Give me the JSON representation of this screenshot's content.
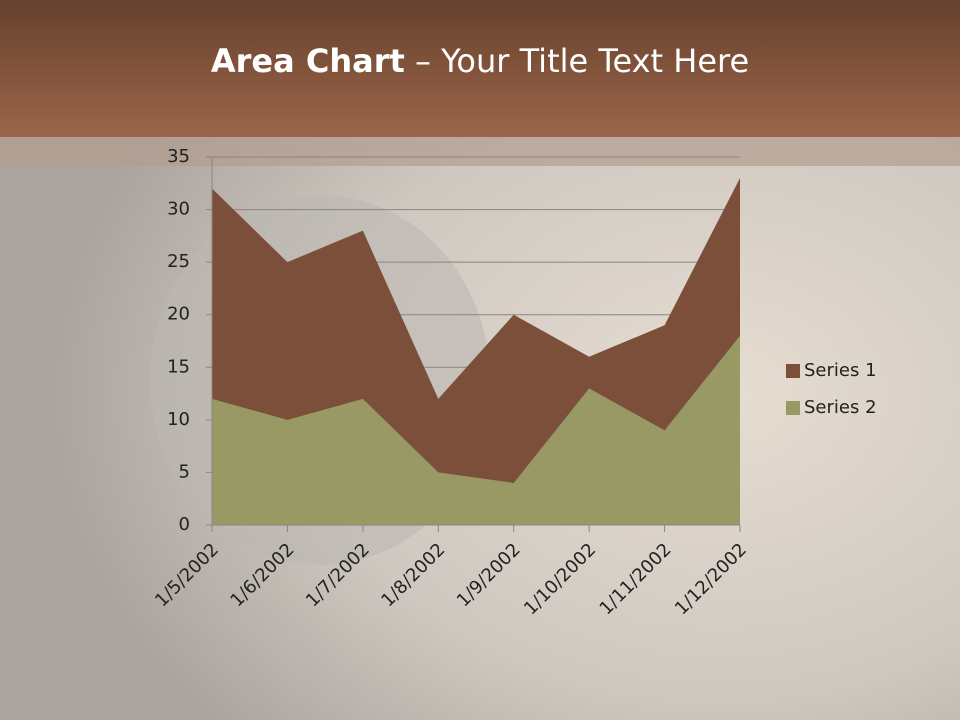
{
  "chart_data": {
    "type": "area",
    "title_bold": "Area Chart",
    "title_rest": " – Your Title Text Here",
    "categories": [
      "1/5/2002",
      "1/6/2002",
      "1/7/2002",
      "1/8/2002",
      "1/9/2002",
      "1/10/2002",
      "1/11/2002",
      "1/12/2002"
    ],
    "series": [
      {
        "name": "Series 1",
        "color": "#7b4f3a",
        "values": [
          32,
          25,
          28,
          12,
          20,
          16,
          19,
          33
        ]
      },
      {
        "name": "Series 2",
        "color": "#999966",
        "values": [
          12,
          10,
          12,
          5,
          4,
          13,
          9,
          18
        ]
      }
    ],
    "ylim": [
      0,
      35
    ],
    "yticks": [
      0,
      5,
      10,
      15,
      20,
      25,
      30,
      35
    ],
    "grid": true,
    "legend": "right"
  }
}
